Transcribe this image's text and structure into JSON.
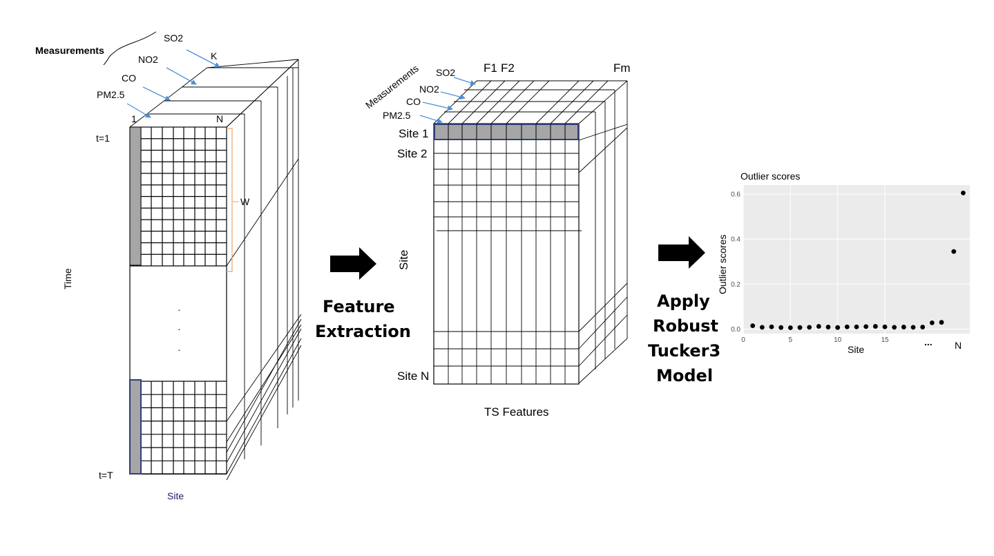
{
  "left_cube": {
    "measurements_label": "Measurements",
    "measurement_names": [
      "SO2",
      "NO2",
      "CO",
      "PM2.5"
    ],
    "k_label": "K",
    "one_label": "1",
    "n_label": "N",
    "t1_label": "t=1",
    "tT_label": "t=T",
    "w_label": "W",
    "time_label": "Time",
    "site_label": "Site",
    "ellipsis": [
      "·",
      "·",
      "·"
    ]
  },
  "arrow1_label": [
    "Feature",
    "Extraction"
  ],
  "middle_cube": {
    "measurements_label": "Measurements",
    "measurement_names": [
      "SO2",
      "NO2",
      "CO",
      "PM2.5"
    ],
    "feature_labels": [
      "F1",
      "F2",
      "Fm"
    ],
    "row_labels": [
      "Site 1",
      "Site 2",
      "Site N"
    ],
    "site_axis_label": "Site",
    "features_label": "TS Features"
  },
  "arrow2_label": [
    "Apply",
    "Robust",
    "Tucker3",
    "Model"
  ],
  "chart_data": {
    "type": "scatter",
    "title": "Outlier scores",
    "xlabel": "Site",
    "ylabel": "Outlier scores",
    "xlim": [
      0,
      24
    ],
    "ylim": [
      -0.02,
      0.64
    ],
    "x_ticks": [
      0,
      5,
      10,
      15
    ],
    "y_ticks": [
      0.0,
      0.2,
      0.4,
      0.6
    ],
    "y_tick_labels": [
      "0.0",
      "0.2",
      "0.4",
      "0.6"
    ],
    "x_extra_labels": [
      "...",
      "N"
    ],
    "grid": true,
    "background": "#ebebeb",
    "points": [
      {
        "x": 1,
        "y": 0.015
      },
      {
        "x": 2,
        "y": 0.008
      },
      {
        "x": 3,
        "y": 0.01
      },
      {
        "x": 4,
        "y": 0.007
      },
      {
        "x": 5,
        "y": 0.006
      },
      {
        "x": 6,
        "y": 0.007
      },
      {
        "x": 7,
        "y": 0.008
      },
      {
        "x": 8,
        "y": 0.012
      },
      {
        "x": 9,
        "y": 0.009
      },
      {
        "x": 10,
        "y": 0.007
      },
      {
        "x": 11,
        "y": 0.01
      },
      {
        "x": 12,
        "y": 0.01
      },
      {
        "x": 13,
        "y": 0.011
      },
      {
        "x": 14,
        "y": 0.012
      },
      {
        "x": 15,
        "y": 0.01
      },
      {
        "x": 16,
        "y": 0.008
      },
      {
        "x": 17,
        "y": 0.009
      },
      {
        "x": 18,
        "y": 0.008
      },
      {
        "x": 19,
        "y": 0.009
      },
      {
        "x": 20,
        "y": 0.028
      },
      {
        "x": 21,
        "y": 0.03
      },
      {
        "x": 22.3,
        "y": 0.345
      },
      {
        "x": 23.3,
        "y": 0.605
      }
    ]
  },
  "colors": {
    "shade": "#a6a6a6",
    "shade_border": "#2f3d7a",
    "blue_arrow": "#4f8fd6",
    "window_bracket": "#f4a261",
    "site_label": "#1a1f5e"
  }
}
